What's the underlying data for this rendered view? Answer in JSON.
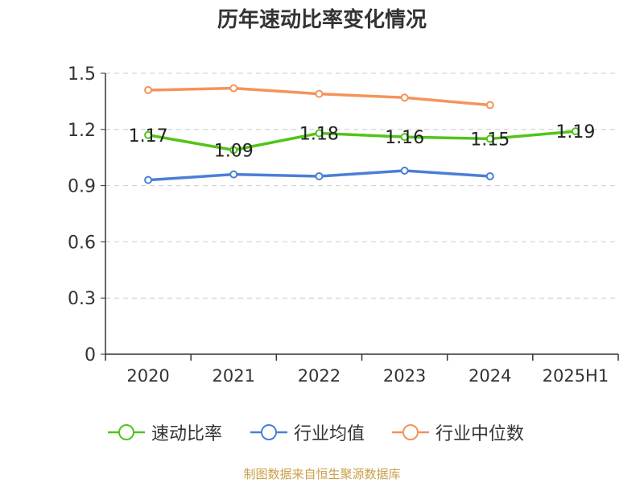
{
  "chart_data": {
    "type": "line",
    "title": "历年速动比率变化情况",
    "categories": [
      "2020",
      "2021",
      "2022",
      "2023",
      "2024",
      "2025H1"
    ],
    "y_ticks": [
      "0",
      "0.3",
      "0.6",
      "0.9",
      "1.2",
      "1.5"
    ],
    "ylim": [
      0,
      1.5
    ],
    "grid": true,
    "legend_position": "bottom",
    "series": [
      {
        "name": "速动比率",
        "color": "#52c41a",
        "values": [
          1.17,
          1.09,
          1.18,
          1.16,
          1.15,
          1.19
        ],
        "labels": [
          "1.17",
          "1.09",
          "1.18",
          "1.16",
          "1.15",
          "1.19"
        ]
      },
      {
        "name": "行业均值",
        "color": "#4a7fd6",
        "values": [
          0.93,
          0.96,
          0.95,
          0.98,
          0.95,
          null
        ]
      },
      {
        "name": "行业中位数",
        "color": "#f5935a",
        "values": [
          1.41,
          1.42,
          1.39,
          1.37,
          1.33,
          null
        ]
      }
    ]
  },
  "footer": {
    "source": "制图数据来自恒生聚源数据库"
  }
}
